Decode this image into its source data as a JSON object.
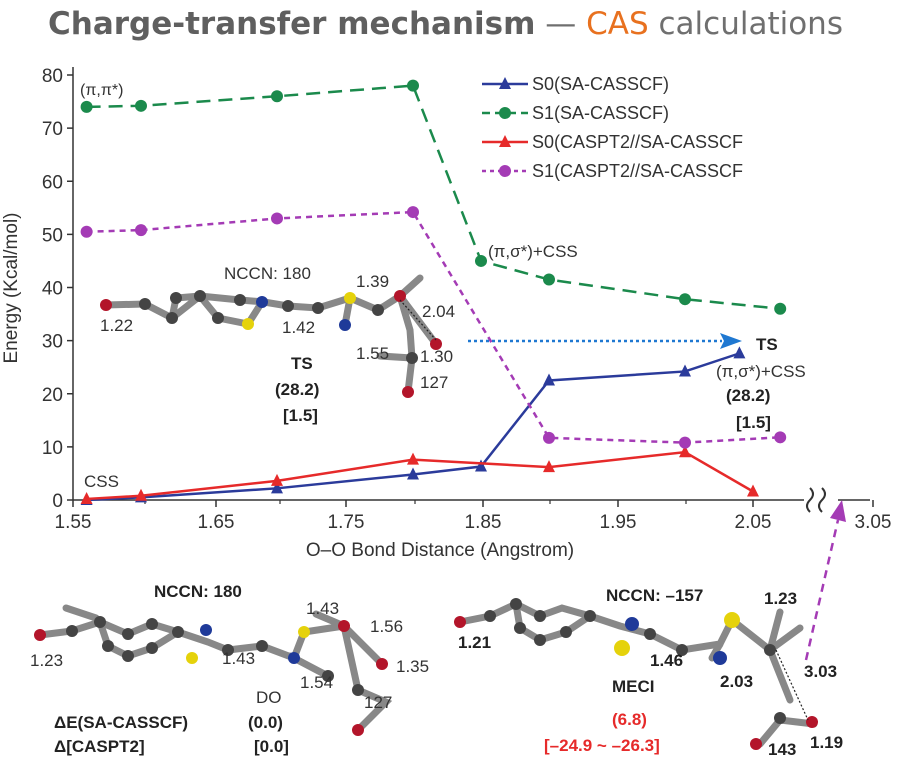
{
  "header": {
    "title_main": "Charge-transfer mechanism",
    "title_dash": " — ",
    "title_accent": "CAS",
    "title_rest": " calculations",
    "accent_color": "#e8711f"
  },
  "chart_data": {
    "type": "line",
    "xlabel": "O–O Bond Distance (Angstrom)",
    "ylabel": "Energy (Kcal/mol)",
    "xlim": [
      1.55,
      3.05
    ],
    "ylim": [
      0,
      80
    ],
    "axis_break": "between 2.05 and 3.05",
    "x_ticks": [
      "1.55",
      "1.65",
      "1.75",
      "1.85",
      "1.95",
      "2.05",
      "3.05"
    ],
    "y_ticks": [
      "0",
      "10",
      "20",
      "30",
      "40",
      "50",
      "60",
      "70",
      "80"
    ],
    "legend_position": "top-right",
    "grid": false,
    "series": [
      {
        "name": "S0(SA-CASSCF)",
        "color": "#2b3b9b",
        "dash": "solid",
        "marker": "triangle",
        "x": [
          1.56,
          1.6,
          1.7,
          1.8,
          1.85,
          1.9,
          2.0,
          2.04
        ],
        "y": [
          0.0,
          0.5,
          2.2,
          4.8,
          6.3,
          22.5,
          24.2,
          27.6
        ]
      },
      {
        "name": "S1(SA-CASSCF)",
        "color": "#1b8a4c",
        "dash": "dashed",
        "marker": "circle",
        "x": [
          1.56,
          1.6,
          1.7,
          1.8,
          1.85,
          1.9,
          2.0,
          2.07
        ],
        "y": [
          74,
          74.2,
          76,
          78,
          45,
          41.5,
          37.8,
          36
        ]
      },
      {
        "name": "S0(CASPT2//SA-CASSCF",
        "color": "#e62a2a",
        "dash": "solid",
        "marker": "triangle",
        "x": [
          1.56,
          1.6,
          1.7,
          1.8,
          1.9,
          2.0,
          2.05
        ],
        "y": [
          0.2,
          0.8,
          3.6,
          7.6,
          6.2,
          9.0,
          1.6
        ]
      },
      {
        "name": "S1(CASPT2//SA-CASSCF",
        "color": "#a43bb5",
        "dash": "dotted",
        "marker": "circle",
        "x": [
          1.56,
          1.6,
          1.7,
          1.8,
          1.9,
          2.0,
          2.07
        ],
        "y": [
          50.5,
          50.8,
          53,
          54.2,
          11.7,
          10.8,
          11.8
        ]
      }
    ],
    "annotations": {
      "pi_pi": "(π,π*)",
      "pi_sigma_css": "(π,σ*)+CSS",
      "css": "CSS",
      "ts_right": "TS",
      "ts_right_state": "(π,σ*)+CSS",
      "ts_right_val": "(28.2)",
      "ts_right_val2": "[1.5]",
      "ts_left": "TS",
      "ts_left_val": "(28.2)",
      "ts_left_val2": "[1.5]",
      "nccn_ts": "NCCN: 180",
      "ts_139": "1.39",
      "ts_204": "2.04",
      "ts_122": "1.22",
      "ts_142": "1.42",
      "ts_155": "1.55",
      "ts_130": "1.30",
      "ts_127": "127"
    }
  },
  "bottom_left": {
    "nccn": "NCCN: 180",
    "b143a": "1.43",
    "b156": "1.56",
    "b123": "1.23",
    "b143b": "1.43",
    "b135": "1.35",
    "b154": "1.54",
    "angle": "127",
    "do": "DO",
    "de_label": "ΔE(SA-CASSCF)",
    "de_val": "(0.0)",
    "dpt_label": "Δ[CASPT2]",
    "dpt_val": "[0.0]"
  },
  "bottom_right": {
    "nccn": "NCCN: –157",
    "b123": "1.23",
    "b121": "1.21",
    "b146": "1.46",
    "b303": "3.03",
    "b203": "2.03",
    "meci": "MECI",
    "meci_val": "(6.8)",
    "meci_range": "[–24.9 ~ –26.3]",
    "angle": "143",
    "b119": "1.19"
  }
}
